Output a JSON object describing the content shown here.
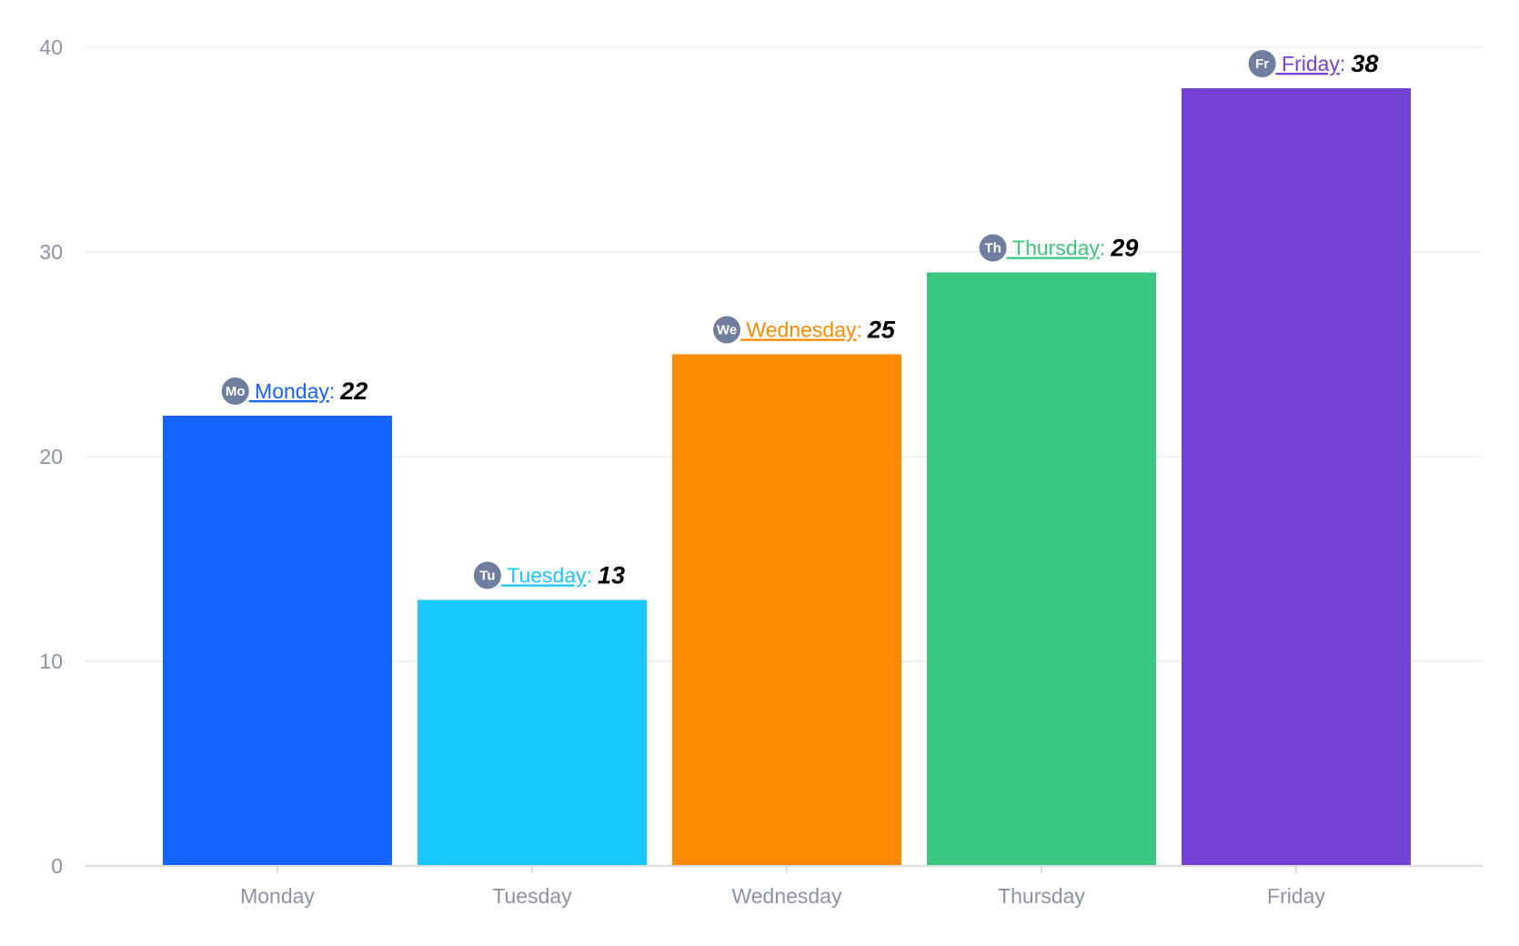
{
  "chart_data": {
    "type": "bar",
    "title": "",
    "xlabel": "",
    "ylabel": "",
    "categories": [
      "Monday",
      "Tuesday",
      "Wednesday",
      "Thursday",
      "Friday"
    ],
    "values": [
      22,
      13,
      25,
      29,
      38
    ],
    "abbreviations": [
      "Mo",
      "Tu",
      "We",
      "Th",
      "Fr"
    ],
    "colors": [
      "#1664ff",
      "#1ac6ff",
      "#ff8a00",
      "#3cc780",
      "#7442d4"
    ],
    "ylim": [
      0,
      40
    ],
    "yticks": [
      0,
      10,
      20,
      30,
      40
    ],
    "grid": true,
    "legend": "none"
  },
  "style": {
    "avatar_color": "#6f7e9f",
    "axis_text_color": "#8a93a6",
    "grid_color": "#eceef2",
    "axis_color": "#d9dde4"
  }
}
